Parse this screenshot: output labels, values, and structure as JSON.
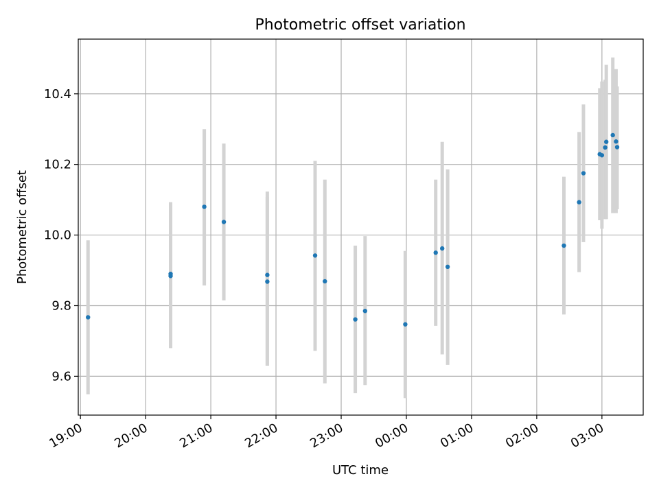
{
  "chart_data": {
    "type": "scatter",
    "title": "Photometric offset variation",
    "xlabel": "UTC time",
    "ylabel": "Photometric offset",
    "x_ticks": [
      "19:00",
      "20:00",
      "21:00",
      "22:00",
      "23:00",
      "00:00",
      "01:00",
      "02:00",
      "03:00"
    ],
    "y_ticks": [
      9.6,
      9.8,
      10.0,
      10.2,
      10.4
    ],
    "xlim": [
      "18:58",
      "03:38"
    ],
    "ylim": [
      9.49,
      10.555
    ],
    "grid": true,
    "colors": {
      "point": "#1f77b4",
      "errorbar": "#d3d3d3",
      "grid": "#b0b0b0"
    },
    "points": [
      {
        "t": "19:07",
        "y": 9.767,
        "lo": 9.549,
        "hi": 9.985
      },
      {
        "t": "20:23",
        "y": 9.89,
        "lo": 9.68,
        "hi": 10.093
      },
      {
        "t": "20:23",
        "y": 9.884,
        "lo": 9.68,
        "hi": 10.093
      },
      {
        "t": "20:54",
        "y": 10.08,
        "lo": 9.857,
        "hi": 10.3
      },
      {
        "t": "21:12",
        "y": 10.037,
        "lo": 9.815,
        "hi": 10.259
      },
      {
        "t": "21:52",
        "y": 9.887,
        "lo": 9.63,
        "hi": 10.123
      },
      {
        "t": "21:52",
        "y": 9.868,
        "lo": 9.63,
        "hi": 10.108
      },
      {
        "t": "22:36",
        "y": 9.942,
        "lo": 9.672,
        "hi": 10.21
      },
      {
        "t": "22:45",
        "y": 9.869,
        "lo": 9.58,
        "hi": 10.157
      },
      {
        "t": "23:13",
        "y": 9.761,
        "lo": 9.552,
        "hi": 9.97
      },
      {
        "t": "23:22",
        "y": 9.785,
        "lo": 9.575,
        "hi": 9.997
      },
      {
        "t": "23:59",
        "y": 9.747,
        "lo": 9.538,
        "hi": 9.955
      },
      {
        "t": "00:27",
        "y": 9.95,
        "lo": 9.743,
        "hi": 10.157
      },
      {
        "t": "00:33",
        "y": 9.962,
        "lo": 9.662,
        "hi": 10.264
      },
      {
        "t": "00:38",
        "y": 9.91,
        "lo": 9.632,
        "hi": 10.186
      },
      {
        "t": "02:25",
        "y": 9.97,
        "lo": 9.775,
        "hi": 10.165
      },
      {
        "t": "02:39",
        "y": 10.093,
        "lo": 9.895,
        "hi": 10.292
      },
      {
        "t": "02:43",
        "y": 10.175,
        "lo": 9.98,
        "hi": 10.37
      },
      {
        "t": "02:58",
        "y": 10.229,
        "lo": 10.042,
        "hi": 10.416
      },
      {
        "t": "03:00",
        "y": 10.226,
        "lo": 10.018,
        "hi": 10.435
      },
      {
        "t": "03:03",
        "y": 10.248,
        "lo": 10.045,
        "hi": 10.44
      },
      {
        "t": "03:04",
        "y": 10.264,
        "lo": 10.045,
        "hi": 10.482
      },
      {
        "t": "03:10",
        "y": 10.283,
        "lo": 10.062,
        "hi": 10.503
      },
      {
        "t": "03:13",
        "y": 10.265,
        "lo": 10.062,
        "hi": 10.47
      },
      {
        "t": "03:14",
        "y": 10.249,
        "lo": 10.073,
        "hi": 10.421
      }
    ]
  }
}
